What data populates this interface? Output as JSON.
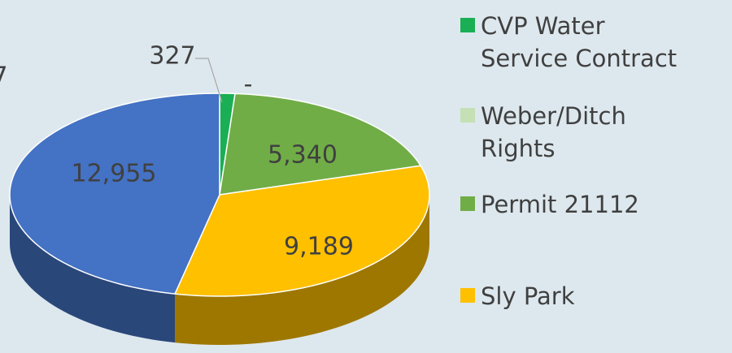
{
  "chart_data": {
    "type": "pie3d",
    "categories": [
      "CVP Water Service Contract",
      "Weber/Ditch Rights",
      "Permit 21112",
      "Sly Park",
      null
    ],
    "values": [
      327,
      0,
      5340,
      9189,
      12955
    ],
    "value_labels": [
      "327",
      "-",
      "5,340",
      "9,189",
      "12,955"
    ],
    "colors": [
      "#1aaf54",
      "#c5e0b4",
      "#70ad47",
      "#ffc000",
      "#4472c4"
    ],
    "annotations": [
      "7"
    ]
  }
}
